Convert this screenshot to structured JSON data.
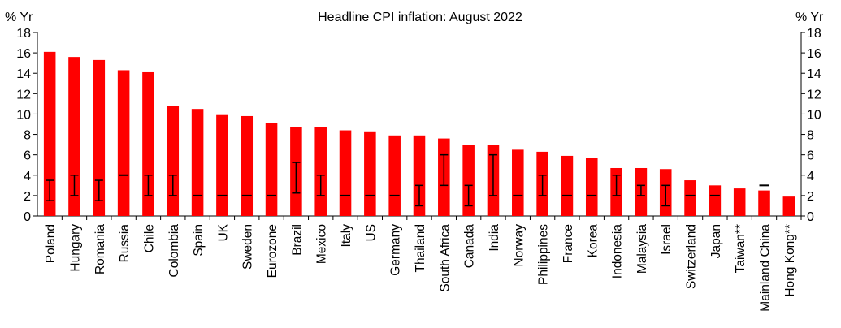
{
  "chart_data": {
    "type": "bar",
    "title": "Headline CPI inflation: August 2022",
    "y_unit_left": "% Yr",
    "y_unit_right": "% Yr",
    "ylim": [
      0,
      18
    ],
    "yticks": [
      0,
      2,
      4,
      6,
      8,
      10,
      12,
      14,
      16,
      18
    ],
    "grid": false,
    "legend": "none",
    "bar_color": "#ff0000",
    "target_color": "#000000",
    "categories": [
      "Poland",
      "Hungary",
      "Romania",
      "Russia",
      "Chile",
      "Colombia",
      "Spain",
      "UK",
      "Sweden",
      "Eurozone",
      "Brazil",
      "Mexico",
      "Italy",
      "US",
      "Germany",
      "Thailand",
      "South Africa",
      "Canada",
      "India",
      "Norway",
      "Philippines",
      "France",
      "Korea",
      "Indonesia",
      "Malaysia",
      "Israel",
      "Switzerland",
      "Japan",
      "Taiwan**",
      "Mainland China",
      "Hong Kong**"
    ],
    "values": [
      16.1,
      15.6,
      15.3,
      14.3,
      14.1,
      10.8,
      10.5,
      9.9,
      9.8,
      9.1,
      8.7,
      8.7,
      8.4,
      8.3,
      7.9,
      7.9,
      7.6,
      7.0,
      7.0,
      6.5,
      6.3,
      5.9,
      5.7,
      4.7,
      4.7,
      4.6,
      3.5,
      3.0,
      2.7,
      2.5,
      1.9
    ],
    "targets": [
      {
        "low": 1.5,
        "high": 3.5
      },
      {
        "low": 2,
        "high": 4
      },
      {
        "low": 1.5,
        "high": 3.5
      },
      {
        "point": 4
      },
      {
        "low": 2,
        "high": 4
      },
      {
        "low": 2,
        "high": 4
      },
      {
        "point": 2
      },
      {
        "point": 2
      },
      {
        "point": 2
      },
      {
        "point": 2
      },
      {
        "low": 2.25,
        "high": 5.25
      },
      {
        "low": 2,
        "high": 4
      },
      {
        "point": 2
      },
      {
        "point": 2
      },
      {
        "point": 2
      },
      {
        "low": 1,
        "high": 3
      },
      {
        "low": 3,
        "high": 6
      },
      {
        "low": 1,
        "high": 3
      },
      {
        "low": 2,
        "high": 6
      },
      {
        "point": 2
      },
      {
        "low": 2,
        "high": 4
      },
      {
        "point": 2
      },
      {
        "point": 2
      },
      {
        "low": 2,
        "high": 4
      },
      {
        "low": 2,
        "high": 3
      },
      {
        "low": 1,
        "high": 3
      },
      {
        "point": 2
      },
      {
        "point": 2
      },
      null,
      {
        "point": 3
      },
      null
    ]
  }
}
